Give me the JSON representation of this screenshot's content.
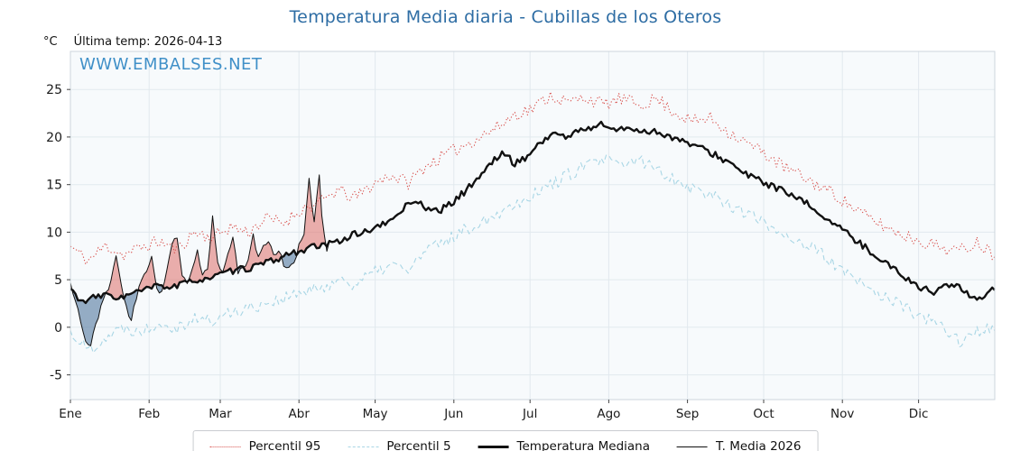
{
  "header": {
    "title": "Temperatura Media diaria - Cubillas de los Oteros",
    "y_unit_label": "°C",
    "last_temp_label": "Última temp: 2026-04-13",
    "watermark": "WWW.EMBALSES.NET"
  },
  "colors": {
    "title": "#2e6da4",
    "watermark": "#4090c8",
    "plot_bg": "#f7fafc",
    "grid": "#e2e9ee",
    "border": "#ccd6dc",
    "tick_text": "#1a1a1a",
    "percentil95": "#d9534f",
    "percentil5": "#a9d6e5",
    "mediana": "#111111",
    "t2026": "#111111",
    "above_fill": "rgba(222,110,104,0.55)",
    "below_fill": "rgba(105,138,173,0.7)"
  },
  "legend": {
    "items": [
      {
        "label": "Percentil 95",
        "color": "#d9534f",
        "style": "dotted",
        "weight": 1.5
      },
      {
        "label": "Percentil 5",
        "color": "#a9d6e5",
        "style": "dashed",
        "weight": 1.5
      },
      {
        "label": "Temperatura Mediana",
        "color": "#111111",
        "style": "solid",
        "weight": 3
      },
      {
        "label": "T. Media 2026",
        "color": "#111111",
        "style": "solid",
        "weight": 1.5
      }
    ]
  },
  "chart_data": {
    "type": "line",
    "title": "Temperatura Media diaria - Cubillas de los Oteros",
    "xlabel": "",
    "ylabel": "°C",
    "x_unit": "day_of_year",
    "xlim": [
      1,
      365
    ],
    "ylim": [
      -7.6,
      29.0
    ],
    "yticks": [
      -5,
      0,
      5,
      10,
      15,
      20,
      25
    ],
    "grid": true,
    "legend_position": "bottom",
    "month_ticks": [
      {
        "label": "Ene",
        "day": 1
      },
      {
        "label": "Feb",
        "day": 32
      },
      {
        "label": "Mar",
        "day": 60
      },
      {
        "label": "Abr",
        "day": 91
      },
      {
        "label": "May",
        "day": 121
      },
      {
        "label": "Jun",
        "day": 152
      },
      {
        "label": "Jul",
        "day": 182
      },
      {
        "label": "Ago",
        "day": 213
      },
      {
        "label": "Sep",
        "day": 244
      },
      {
        "label": "Oct",
        "day": 274
      },
      {
        "label": "Nov",
        "day": 305
      },
      {
        "label": "Dic",
        "day": 335
      }
    ],
    "series": [
      {
        "name": "Percentil 95",
        "color": "#d9534f",
        "style": "dotted",
        "width": 1.1,
        "jitter": 0.7,
        "points": [
          [
            1,
            8.5
          ],
          [
            8,
            7
          ],
          [
            15,
            8.6
          ],
          [
            22,
            7.6
          ],
          [
            29,
            8.4
          ],
          [
            36,
            9
          ],
          [
            43,
            8.2
          ],
          [
            50,
            10
          ],
          [
            57,
            9.4
          ],
          [
            64,
            10.6
          ],
          [
            71,
            10
          ],
          [
            78,
            11.4
          ],
          [
            85,
            11
          ],
          [
            92,
            12.4
          ],
          [
            99,
            13
          ],
          [
            106,
            14.4
          ],
          [
            113,
            13.6
          ],
          [
            120,
            15
          ],
          [
            127,
            16
          ],
          [
            134,
            15.2
          ],
          [
            141,
            17
          ],
          [
            148,
            18
          ],
          [
            155,
            19
          ],
          [
            162,
            20
          ],
          [
            169,
            21
          ],
          [
            176,
            22.4
          ],
          [
            183,
            23
          ],
          [
            190,
            24.4
          ],
          [
            197,
            23.6
          ],
          [
            204,
            24.2
          ],
          [
            211,
            23.4
          ],
          [
            218,
            24
          ],
          [
            225,
            23.4
          ],
          [
            232,
            24
          ],
          [
            239,
            22.6
          ],
          [
            246,
            21.6
          ],
          [
            253,
            22
          ],
          [
            260,
            20.6
          ],
          [
            267,
            19.4
          ],
          [
            274,
            18.4
          ],
          [
            281,
            17
          ],
          [
            288,
            16
          ],
          [
            295,
            15
          ],
          [
            302,
            14
          ],
          [
            309,
            12.6
          ],
          [
            316,
            11.4
          ],
          [
            323,
            10.4
          ],
          [
            330,
            9.6
          ],
          [
            337,
            9
          ],
          [
            344,
            8.4
          ],
          [
            351,
            8
          ],
          [
            358,
            9
          ],
          [
            365,
            7.6
          ]
        ]
      },
      {
        "name": "Percentil 5",
        "color": "#a9d6e5",
        "style": "dashed",
        "width": 1.1,
        "jitter": 0.7,
        "points": [
          [
            1,
            -0.5
          ],
          [
            8,
            -2.4
          ],
          [
            15,
            -1
          ],
          [
            22,
            0
          ],
          [
            29,
            -0.4
          ],
          [
            36,
            0.6
          ],
          [
            43,
            0
          ],
          [
            50,
            1
          ],
          [
            57,
            0.6
          ],
          [
            64,
            1.6
          ],
          [
            71,
            2
          ],
          [
            78,
            2.6
          ],
          [
            85,
            3
          ],
          [
            92,
            3.6
          ],
          [
            99,
            4
          ],
          [
            106,
            5
          ],
          [
            113,
            4.6
          ],
          [
            120,
            5.6
          ],
          [
            127,
            6.6
          ],
          [
            134,
            6
          ],
          [
            141,
            8
          ],
          [
            148,
            9
          ],
          [
            155,
            10
          ],
          [
            162,
            11
          ],
          [
            169,
            12
          ],
          [
            176,
            13
          ],
          [
            183,
            14
          ],
          [
            190,
            15
          ],
          [
            197,
            16
          ],
          [
            204,
            17
          ],
          [
            211,
            17.6
          ],
          [
            218,
            17
          ],
          [
            225,
            17.6
          ],
          [
            232,
            16.6
          ],
          [
            239,
            15.6
          ],
          [
            246,
            14.6
          ],
          [
            253,
            14
          ],
          [
            260,
            13
          ],
          [
            267,
            12
          ],
          [
            274,
            11
          ],
          [
            281,
            10
          ],
          [
            288,
            9
          ],
          [
            295,
            8
          ],
          [
            302,
            6.6
          ],
          [
            309,
            5
          ],
          [
            316,
            4
          ],
          [
            323,
            3
          ],
          [
            330,
            2
          ],
          [
            337,
            1
          ],
          [
            344,
            0
          ],
          [
            351,
            -1.4
          ],
          [
            358,
            -0.6
          ],
          [
            365,
            0.2
          ]
        ]
      },
      {
        "name": "Temperatura Mediana",
        "color": "#111111",
        "style": "solid",
        "width": 2.4,
        "jitter": 0.35,
        "points": [
          [
            1,
            4
          ],
          [
            6,
            2.6
          ],
          [
            11,
            3.2
          ],
          [
            16,
            3.4
          ],
          [
            21,
            3.1
          ],
          [
            26,
            3.6
          ],
          [
            31,
            4
          ],
          [
            36,
            4.4
          ],
          [
            41,
            4.2
          ],
          [
            46,
            4.6
          ],
          [
            51,
            5
          ],
          [
            56,
            5.2
          ],
          [
            61,
            5.6
          ],
          [
            66,
            6
          ],
          [
            71,
            6.2
          ],
          [
            76,
            6.6
          ],
          [
            81,
            7
          ],
          [
            86,
            7.6
          ],
          [
            91,
            8
          ],
          [
            96,
            8.4
          ],
          [
            101,
            8.6
          ],
          [
            106,
            9
          ],
          [
            111,
            9.6
          ],
          [
            116,
            10
          ],
          [
            121,
            10.4
          ],
          [
            126,
            11
          ],
          [
            131,
            12.2
          ],
          [
            136,
            13.4
          ],
          [
            141,
            12.6
          ],
          [
            146,
            12.2
          ],
          [
            151,
            13
          ],
          [
            156,
            14.2
          ],
          [
            161,
            15.6
          ],
          [
            166,
            17
          ],
          [
            171,
            18.4
          ],
          [
            176,
            17.2
          ],
          [
            181,
            18
          ],
          [
            186,
            19.4
          ],
          [
            191,
            20.4
          ],
          [
            196,
            20
          ],
          [
            201,
            20.6
          ],
          [
            206,
            21
          ],
          [
            211,
            21.4
          ],
          [
            216,
            20.6
          ],
          [
            221,
            21
          ],
          [
            226,
            20.6
          ],
          [
            231,
            20.6
          ],
          [
            236,
            20.2
          ],
          [
            241,
            19.6
          ],
          [
            246,
            19.2
          ],
          [
            251,
            18.6
          ],
          [
            256,
            18
          ],
          [
            261,
            17.2
          ],
          [
            266,
            16.2
          ],
          [
            271,
            15.6
          ],
          [
            276,
            15
          ],
          [
            281,
            14.4
          ],
          [
            286,
            13.6
          ],
          [
            291,
            13
          ],
          [
            296,
            12
          ],
          [
            301,
            11
          ],
          [
            306,
            10
          ],
          [
            311,
            9
          ],
          [
            316,
            8
          ],
          [
            321,
            7
          ],
          [
            326,
            6
          ],
          [
            331,
            5
          ],
          [
            336,
            4.2
          ],
          [
            341,
            3.6
          ],
          [
            346,
            4.6
          ],
          [
            351,
            4.2
          ],
          [
            356,
            3
          ],
          [
            361,
            3.4
          ],
          [
            365,
            4.2
          ]
        ]
      },
      {
        "name": "T. Media 2026",
        "color": "#111111",
        "style": "solid",
        "width": 1.0,
        "jitter": 0.3,
        "points": [
          [
            1,
            4.5
          ],
          [
            3,
            3
          ],
          [
            5,
            0.5
          ],
          [
            7,
            -1.5
          ],
          [
            9,
            -2
          ],
          [
            11,
            0.5
          ],
          [
            13,
            2
          ],
          [
            15,
            3.5
          ],
          [
            17,
            5
          ],
          [
            19,
            7.5
          ],
          [
            21,
            4.5
          ],
          [
            23,
            2
          ],
          [
            25,
            0.8
          ],
          [
            27,
            3
          ],
          [
            29,
            5
          ],
          [
            31,
            6
          ],
          [
            33,
            7.5
          ],
          [
            35,
            4.2
          ],
          [
            37,
            3.6
          ],
          [
            39,
            6
          ],
          [
            41,
            9
          ],
          [
            43,
            9.5
          ],
          [
            45,
            5.2
          ],
          [
            47,
            4.6
          ],
          [
            49,
            6
          ],
          [
            51,
            8
          ],
          [
            53,
            5.4
          ],
          [
            55,
            6.2
          ],
          [
            57,
            11.5
          ],
          [
            59,
            7
          ],
          [
            61,
            5.6
          ],
          [
            63,
            8
          ],
          [
            65,
            9.2
          ],
          [
            67,
            5.8
          ],
          [
            69,
            6.2
          ],
          [
            71,
            7
          ],
          [
            73,
            9.6
          ],
          [
            75,
            7.2
          ],
          [
            77,
            8.6
          ],
          [
            79,
            9.2
          ],
          [
            81,
            7.6
          ],
          [
            83,
            8.2
          ],
          [
            85,
            6.6
          ],
          [
            87,
            6.2
          ],
          [
            89,
            6.6
          ],
          [
            91,
            8.6
          ],
          [
            93,
            10
          ],
          [
            95,
            15.4
          ],
          [
            97,
            11
          ],
          [
            99,
            16
          ],
          [
            100,
            12
          ],
          [
            101,
            9.6
          ],
          [
            102,
            8.2
          ],
          [
            103,
            9
          ]
        ]
      }
    ],
    "fill_between": {
      "upper": "T. Media 2026",
      "base": "Temperatura Mediana",
      "x_range": [
        1,
        103
      ],
      "above_color": "rgba(222,110,104,0.55)",
      "below_color": "rgba(105,138,173,0.7)"
    }
  }
}
